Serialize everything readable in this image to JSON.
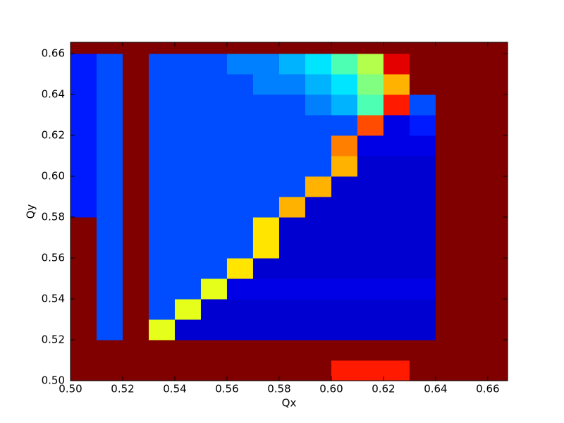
{
  "chart_data": {
    "type": "heatmap",
    "colormap": "jet",
    "zlim": [
      0,
      1
    ],
    "x_label": "Qx",
    "y_label": "Qy",
    "xlim": [
      0.5,
      0.6676
    ],
    "ylim": [
      0.5,
      0.6655
    ],
    "xticks": [
      {
        "value": 0.5,
        "label": "0.50"
      },
      {
        "value": 0.52,
        "label": "0.52"
      },
      {
        "value": 0.54,
        "label": "0.54"
      },
      {
        "value": 0.56,
        "label": "0.56"
      },
      {
        "value": 0.58,
        "label": "0.58"
      },
      {
        "value": 0.6,
        "label": "0.60"
      },
      {
        "value": 0.62,
        "label": "0.62"
      },
      {
        "value": 0.64,
        "label": "0.64"
      },
      {
        "value": 0.66,
        "label": "0.66"
      }
    ],
    "yticks": [
      {
        "value": 0.5,
        "label": "0.50"
      },
      {
        "value": 0.52,
        "label": "0.52"
      },
      {
        "value": 0.54,
        "label": "0.54"
      },
      {
        "value": 0.56,
        "label": "0.56"
      },
      {
        "value": 0.58,
        "label": "0.58"
      },
      {
        "value": 0.6,
        "label": "0.60"
      },
      {
        "value": 0.62,
        "label": "0.62"
      },
      {
        "value": 0.64,
        "label": "0.64"
      },
      {
        "value": 0.66,
        "label": "0.66"
      }
    ],
    "xbins": [
      0.5,
      0.51,
      0.52,
      0.53,
      0.54,
      0.55,
      0.56,
      0.57,
      0.58,
      0.59,
      0.6,
      0.61,
      0.62,
      0.63,
      0.64,
      0.65,
      0.66,
      0.6676
    ],
    "ybins": [
      0.5,
      0.51,
      0.52,
      0.53,
      0.54,
      0.55,
      0.56,
      0.57,
      0.58,
      0.59,
      0.6,
      0.61,
      0.62,
      0.63,
      0.64,
      0.65,
      0.66,
      0.6655
    ],
    "z": [
      [
        1,
        1,
        1,
        1,
        1,
        1,
        1,
        1,
        1,
        1,
        0.85,
        0.85,
        0.85,
        1,
        1,
        1,
        1
      ],
      [
        1,
        1,
        1,
        1,
        1,
        1,
        1,
        1,
        1,
        1,
        1,
        1,
        1,
        1,
        1,
        1,
        1
      ],
      [
        1,
        0.2,
        1,
        0.6,
        0.08,
        0.08,
        0.08,
        0.08,
        0.08,
        0.08,
        0.08,
        0.08,
        0.08,
        0.08,
        1,
        1,
        1
      ],
      [
        1,
        0.2,
        1,
        0.2,
        0.6,
        0.08,
        0.08,
        0.08,
        0.08,
        0.08,
        0.08,
        0.08,
        0.08,
        0.08,
        1,
        1,
        1
      ],
      [
        1,
        0.2,
        1,
        0.2,
        0.2,
        0.6,
        0.1,
        0.1,
        0.1,
        0.1,
        0.1,
        0.1,
        0.1,
        0.1,
        1,
        1,
        1
      ],
      [
        1,
        0.2,
        1,
        0.2,
        0.2,
        0.2,
        0.65,
        0.08,
        0.08,
        0.08,
        0.08,
        0.08,
        0.08,
        0.08,
        1,
        1,
        1
      ],
      [
        1,
        0.2,
        1,
        0.2,
        0.2,
        0.2,
        0.2,
        0.65,
        0.08,
        0.08,
        0.08,
        0.08,
        0.08,
        0.08,
        1,
        1,
        1
      ],
      [
        1,
        0.2,
        1,
        0.2,
        0.2,
        0.2,
        0.2,
        0.65,
        0.08,
        0.08,
        0.08,
        0.08,
        0.08,
        0.08,
        1,
        1,
        1
      ],
      [
        0.15,
        0.2,
        1,
        0.2,
        0.2,
        0.2,
        0.2,
        0.2,
        0.7,
        0.08,
        0.08,
        0.08,
        0.08,
        0.08,
        1,
        1,
        1
      ],
      [
        0.15,
        0.2,
        1,
        0.2,
        0.2,
        0.2,
        0.2,
        0.2,
        0.2,
        0.7,
        0.08,
        0.08,
        0.08,
        0.08,
        1,
        1,
        1
      ],
      [
        0.15,
        0.2,
        1,
        0.2,
        0.2,
        0.2,
        0.2,
        0.2,
        0.2,
        0.2,
        0.7,
        0.08,
        0.08,
        0.08,
        1,
        1,
        1
      ],
      [
        0.15,
        0.2,
        1,
        0.2,
        0.2,
        0.2,
        0.2,
        0.2,
        0.2,
        0.2,
        0.75,
        0.1,
        0.1,
        0.1,
        1,
        1,
        1
      ],
      [
        0.15,
        0.2,
        1,
        0.2,
        0.2,
        0.2,
        0.2,
        0.2,
        0.2,
        0.2,
        0.2,
        0.8,
        0.1,
        0.15,
        1,
        1,
        1
      ],
      [
        0.15,
        0.2,
        1,
        0.2,
        0.2,
        0.2,
        0.2,
        0.2,
        0.2,
        0.25,
        0.3,
        0.45,
        0.85,
        0.2,
        1,
        1,
        1
      ],
      [
        0.15,
        0.2,
        1,
        0.2,
        0.2,
        0.2,
        0.2,
        0.25,
        0.25,
        0.3,
        0.35,
        0.5,
        0.7,
        1,
        1,
        1,
        1
      ],
      [
        0.15,
        0.2,
        1,
        0.2,
        0.2,
        0.2,
        0.25,
        0.25,
        0.3,
        0.35,
        0.45,
        0.55,
        0.9,
        1,
        1,
        1,
        1
      ],
      [
        1,
        1,
        1,
        1,
        1,
        1,
        1,
        1,
        1,
        1,
        1,
        1,
        1,
        1,
        1,
        1,
        1
      ]
    ]
  }
}
